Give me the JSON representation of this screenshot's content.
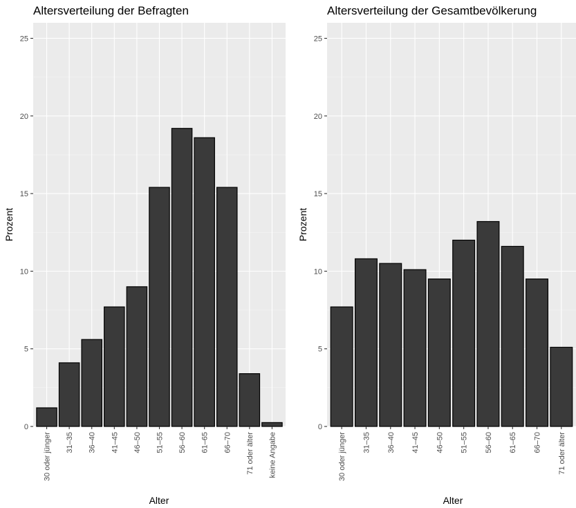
{
  "chart_data": [
    {
      "type": "bar",
      "title": "Altersverteilung der Befragten",
      "xlabel": "Alter",
      "ylabel": "Prozent",
      "ylim": [
        0,
        26
      ],
      "yticks": [
        "0",
        "5",
        "10",
        "15",
        "20",
        "25"
      ],
      "categories": [
        "30 oder jünger",
        "31–35",
        "36–40",
        "41–45",
        "46–50",
        "51–55",
        "56–60",
        "61–65",
        "66–70",
        "71 oder älter",
        "keine Angabe"
      ],
      "values": [
        1.2,
        4.1,
        5.6,
        7.7,
        9.0,
        15.4,
        19.2,
        18.6,
        15.4,
        3.4,
        0.25
      ],
      "bar_color": "#3a3a3a",
      "panel_color": "#ebebeb",
      "grid": true
    },
    {
      "type": "bar",
      "title": "Altersverteilung der Gesamtbevölkerung",
      "xlabel": "Alter",
      "ylabel": "Prozent",
      "ylim": [
        0,
        26
      ],
      "yticks": [
        "0",
        "5",
        "10",
        "15",
        "20",
        "25"
      ],
      "categories": [
        "30 oder jünger",
        "31–35",
        "36–40",
        "41–45",
        "46–50",
        "51–55",
        "56–60",
        "61–65",
        "66–70",
        "71 oder älter"
      ],
      "values": [
        7.7,
        10.8,
        10.5,
        10.1,
        9.5,
        12.0,
        13.2,
        11.6,
        9.5,
        5.1
      ],
      "bar_color": "#3a3a3a",
      "panel_color": "#ebebeb",
      "grid": true
    }
  ]
}
